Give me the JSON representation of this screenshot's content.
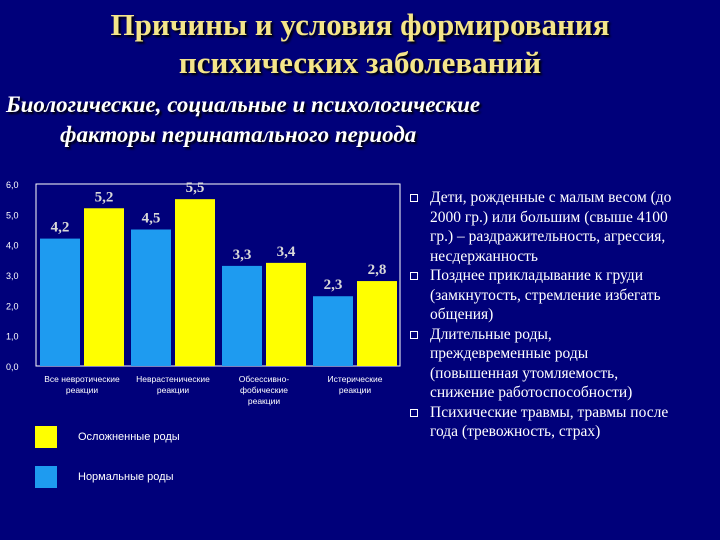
{
  "slide": {
    "title_line1": "Причины и условия формирования",
    "title_line2": "психических заболеваний",
    "subtitle_line1": "Биологические, социальные и психологические",
    "subtitle_line2": "факторы перинатального периода"
  },
  "colors": {
    "background": "#00007a",
    "title": "#f4e58a",
    "series_complicated": "#ffff00",
    "series_normal": "#1e9bf0"
  },
  "chart_data": {
    "type": "bar",
    "ylim": [
      0,
      6
    ],
    "yticks": [
      "6,0",
      "5,0",
      "4,0",
      "3,0",
      "2,0",
      "1,0",
      "0,0"
    ],
    "categories": [
      [
        "Все невротические",
        "реакции"
      ],
      [
        "Неврастенические",
        "реакции"
      ],
      [
        "Обсессивно-",
        "фобические",
        "реакции"
      ],
      [
        "Истерические",
        "реакции"
      ]
    ],
    "series": [
      {
        "name": "Нормальные роды",
        "values": [
          4.2,
          4.5,
          3.3,
          2.3
        ],
        "labels": [
          "4,2",
          "4,5",
          "3,3",
          "2,3"
        ]
      },
      {
        "name": "Осложненные роды",
        "values": [
          5.2,
          5.5,
          3.4,
          2.8
        ],
        "labels": [
          "5,2",
          "5,5",
          "3,4",
          "2,8"
        ]
      }
    ],
    "legend": [
      {
        "name": "Осложненные роды",
        "series": 1
      },
      {
        "name": "Нормальные роды",
        "series": 0
      }
    ],
    "legend_position": "bottom"
  },
  "bullets": [
    [
      "Дети, рожденные с малым весом (до",
      "2000 гр.) или большим (свыше 4100",
      "гр.) – раздражительность, агрессия,",
      "несдержанность"
    ],
    [
      "Позднее прикладывание к груди",
      "(замкнутость, стремление избегать",
      "общения)"
    ],
    [
      "Длительные роды,",
      "преждевременные роды",
      "(повышенная утомляемость,",
      "снижение работоспособности)"
    ],
    [
      "Психические травмы, травмы после",
      "года (тревожность, страх)"
    ]
  ]
}
